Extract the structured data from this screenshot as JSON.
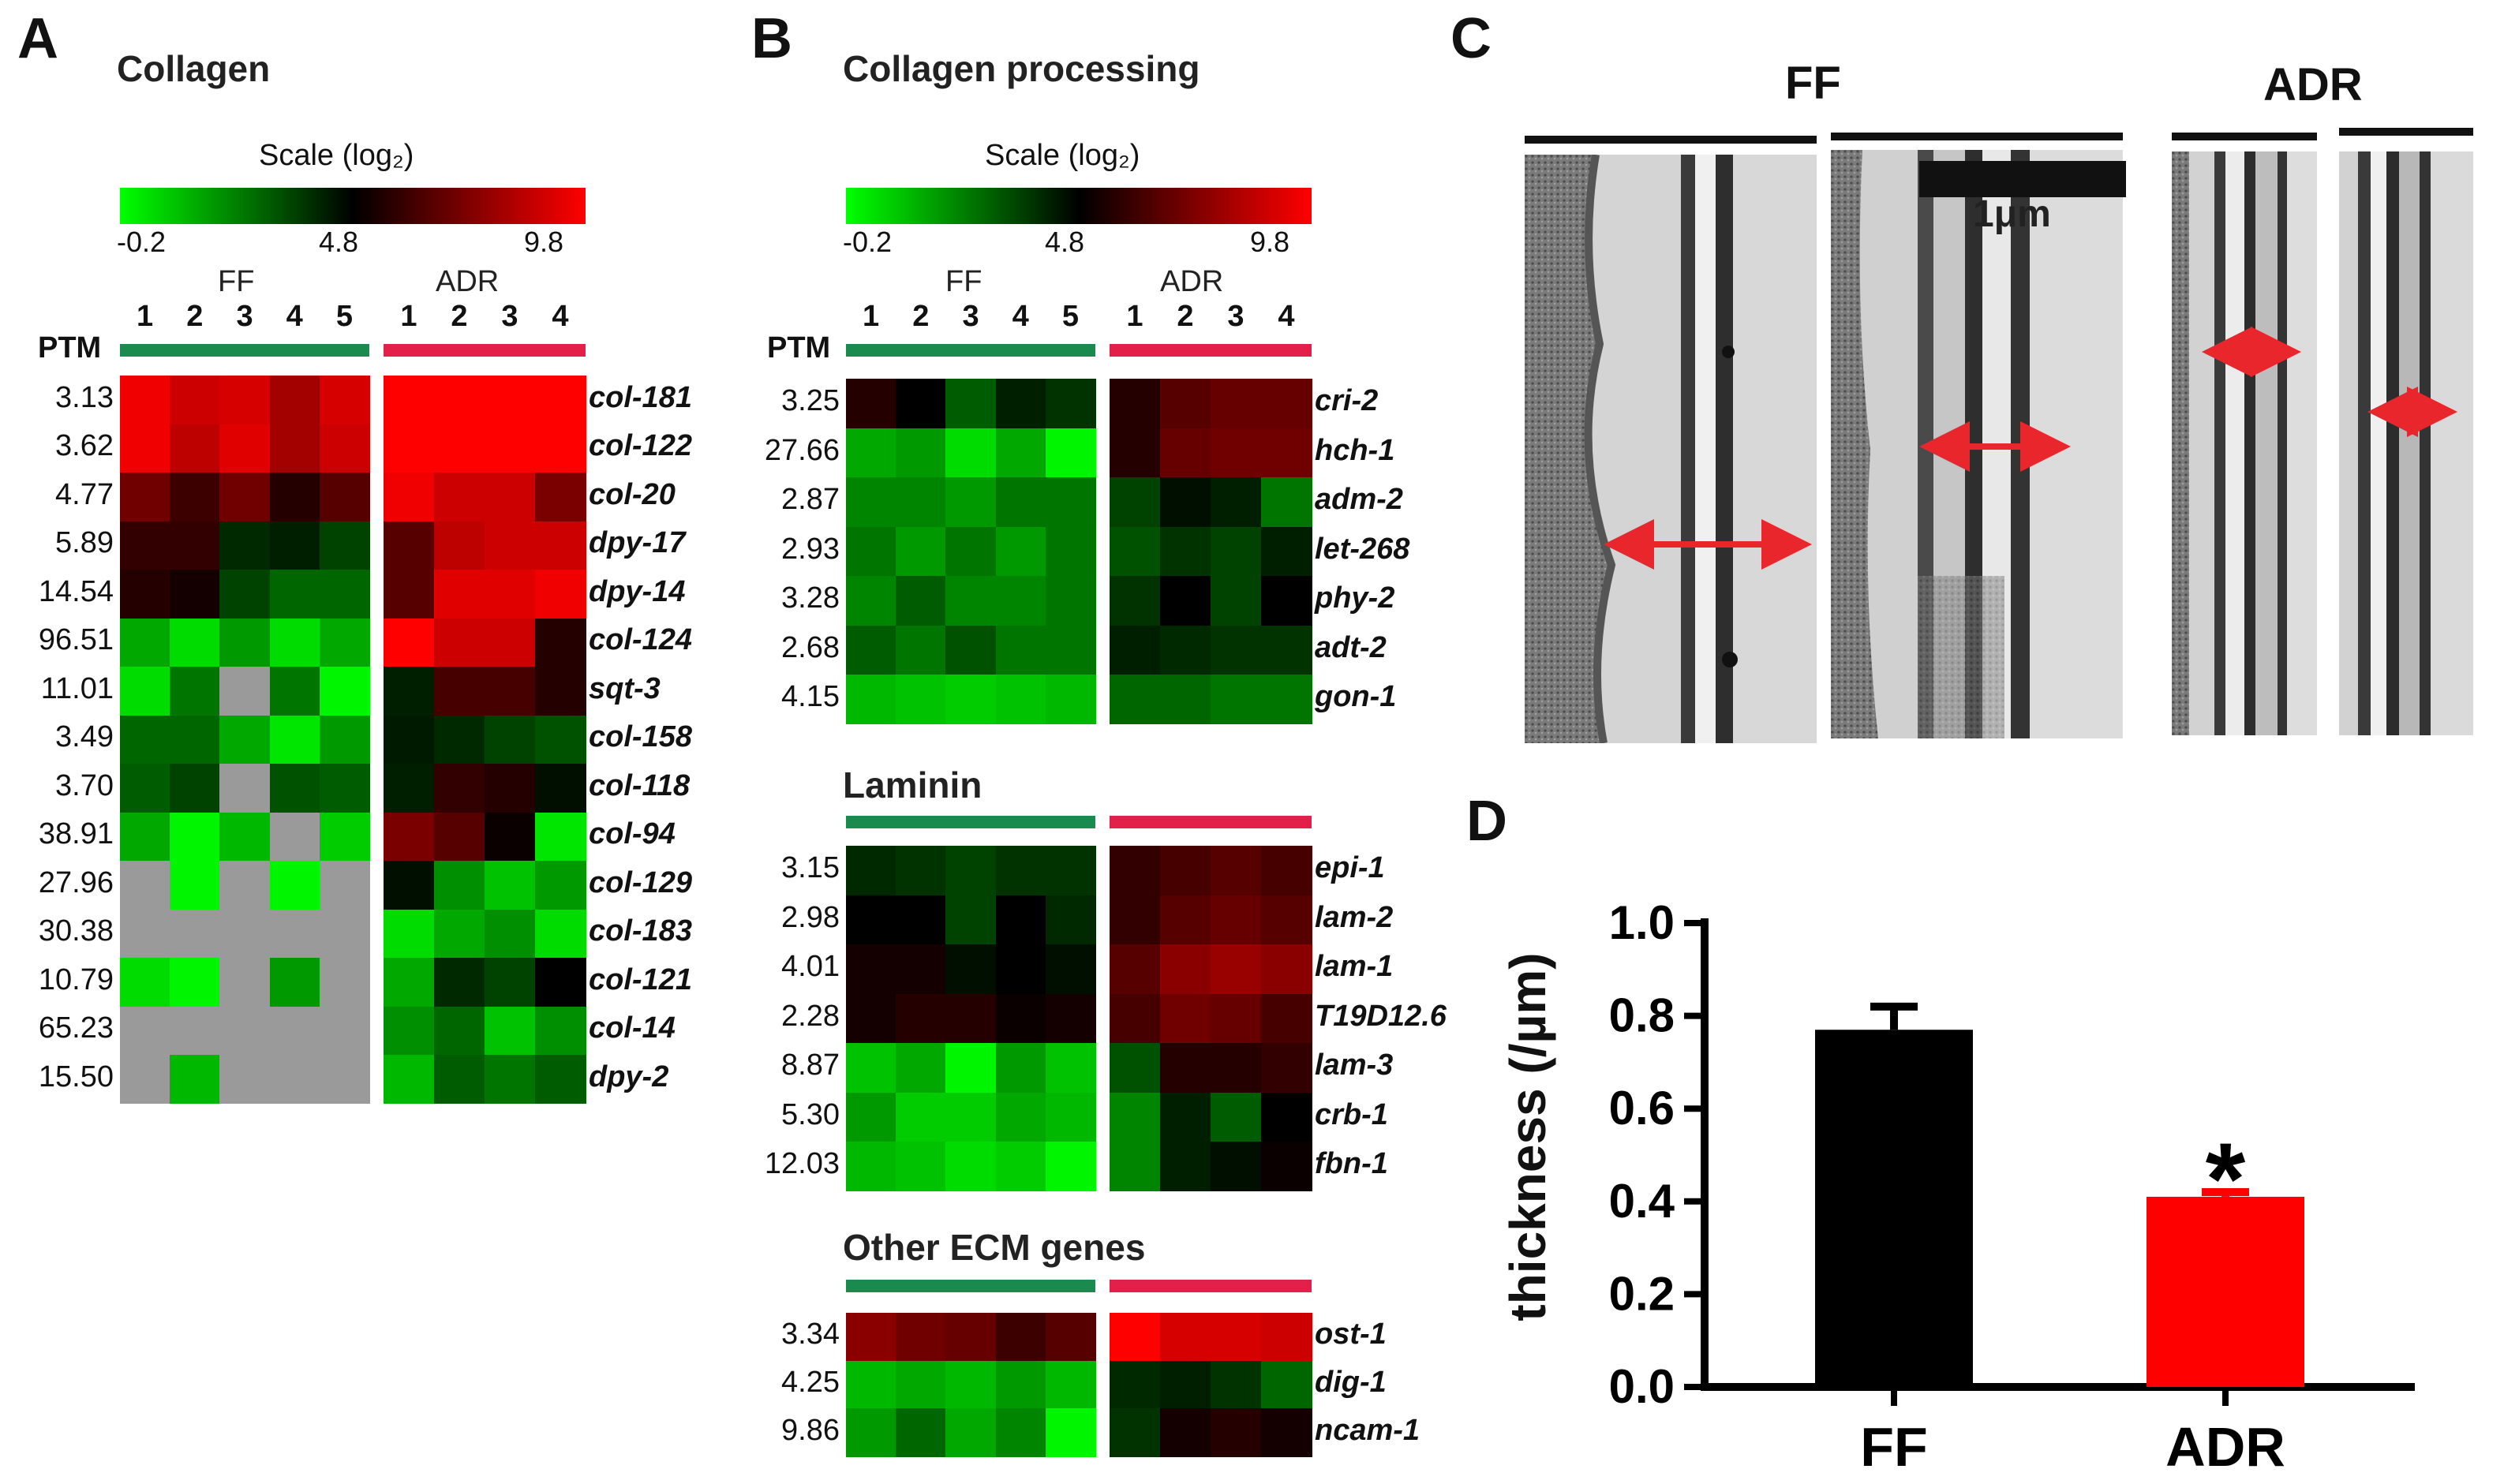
{
  "panels": {
    "a": {
      "letter": "A",
      "title": "Collagen"
    },
    "b": {
      "letter": "B",
      "title": "Collagen processing"
    },
    "c": {
      "letter": "C"
    },
    "d": {
      "letter": "D"
    }
  },
  "heatmap_common": {
    "scale_title": "Scale (log₂)",
    "scale_ticks": [
      "-0.2",
      "4.8",
      "9.8"
    ],
    "group_ff": "FF",
    "group_adr": "ADR",
    "ff_cols": [
      "1",
      "2",
      "3",
      "4",
      "5"
    ],
    "adr_cols": [
      "1",
      "2",
      "3",
      "4"
    ],
    "ptm_header": "PTM",
    "colors": {
      "low": "#00ff00",
      "mid": "#000000",
      "high": "#ff0000",
      "missing": "#9a9a9a"
    }
  },
  "collagen_rows": [
    {
      "ptm": "3.13",
      "gene": "col-181",
      "ff": [
        9.5,
        8.8,
        9.0,
        8.0,
        9.0
      ],
      "adr": [
        9.8,
        9.8,
        9.8,
        9.8
      ]
    },
    {
      "ptm": "3.62",
      "gene": "col-122",
      "ff": [
        9.5,
        8.5,
        9.2,
        8.0,
        8.8
      ],
      "adr": [
        9.8,
        9.8,
        9.8,
        9.8
      ]
    },
    {
      "ptm": "4.77",
      "gene": "col-20",
      "ff": [
        7.0,
        6.0,
        7.0,
        5.5,
        6.5
      ],
      "adr": [
        9.5,
        8.8,
        8.8,
        7.2
      ]
    },
    {
      "ptm": "5.89",
      "gene": "dpy-17",
      "ff": [
        5.8,
        5.8,
        4.0,
        4.2,
        3.5
      ],
      "adr": [
        6.5,
        8.5,
        8.8,
        8.8
      ]
    },
    {
      "ptm": "14.54",
      "gene": "dpy-14",
      "ff": [
        5.5,
        5.2,
        3.5,
        2.8,
        2.8
      ],
      "adr": [
        6.5,
        9.2,
        9.2,
        9.5
      ]
    },
    {
      "ptm": "96.51",
      "gene": "col-124",
      "ff": [
        1.5,
        0.5,
        1.8,
        0.5,
        1.5
      ],
      "adr": [
        9.8,
        8.8,
        8.8,
        5.5
      ]
    },
    {
      "ptm": "11.01",
      "gene": "sqt-3",
      "ff": [
        0.5,
        2.5,
        null,
        2.5,
        0.0
      ],
      "adr": [
        4.2,
        6.2,
        6.2,
        5.5
      ]
    },
    {
      "ptm": "3.49",
      "gene": "col-158",
      "ff": [
        2.8,
        2.8,
        1.5,
        0.3,
        1.8
      ],
      "adr": [
        4.3,
        4.0,
        3.5,
        3.2
      ]
    },
    {
      "ptm": "3.70",
      "gene": "col-118",
      "ff": [
        3.0,
        3.5,
        null,
        3.2,
        3.0
      ],
      "adr": [
        4.2,
        5.8,
        5.5,
        4.5
      ]
    },
    {
      "ptm": "38.91",
      "gene": "col-94",
      "ff": [
        1.5,
        0.0,
        1.2,
        null,
        0.8
      ],
      "adr": [
        7.2,
        6.5,
        5.0,
        0.3
      ]
    },
    {
      "ptm": "27.96",
      "gene": "col-129",
      "ff": [
        null,
        0.0,
        null,
        0.0,
        null
      ],
      "adr": [
        4.5,
        2.0,
        1.0,
        1.8
      ]
    },
    {
      "ptm": "30.38",
      "gene": "col-183",
      "ff": [
        null,
        null,
        null,
        null,
        null
      ],
      "adr": [
        0.5,
        1.5,
        2.0,
        0.5
      ]
    },
    {
      "ptm": "10.79",
      "gene": "col-121",
      "ff": [
        0.5,
        0.0,
        null,
        1.8,
        null
      ],
      "adr": [
        1.5,
        4.0,
        3.5,
        4.8
      ]
    },
    {
      "ptm": "65.23",
      "gene": "col-14",
      "ff": [
        null,
        null,
        null,
        null,
        null
      ],
      "adr": [
        2.0,
        2.8,
        1.0,
        2.0
      ]
    },
    {
      "ptm": "15.50",
      "gene": "dpy-2",
      "ff": [
        null,
        1.2,
        null,
        null,
        null
      ],
      "adr": [
        1.2,
        3.0,
        2.5,
        3.0
      ]
    }
  ],
  "processing_rows": [
    {
      "ptm": "3.25",
      "gene": "cri-2",
      "ff": [
        5.5,
        4.8,
        3.0,
        4.2,
        3.8
      ],
      "adr": [
        5.5,
        6.5,
        6.8,
        6.8
      ]
    },
    {
      "ptm": "27.66",
      "gene": "hch-1",
      "ff": [
        1.5,
        1.8,
        0.5,
        1.5,
        0.0
      ],
      "adr": [
        5.5,
        6.8,
        7.0,
        7.0
      ]
    },
    {
      "ptm": "2.87",
      "gene": "adm-2",
      "ff": [
        2.2,
        2.2,
        1.8,
        2.5,
        2.5
      ],
      "adr": [
        3.5,
        4.5,
        4.2,
        2.5
      ]
    },
    {
      "ptm": "2.93",
      "gene": "let-268",
      "ff": [
        2.5,
        1.8,
        2.5,
        1.8,
        2.5
      ],
      "adr": [
        3.2,
        3.8,
        3.5,
        4.2
      ]
    },
    {
      "ptm": "3.28",
      "gene": "phy-2",
      "ff": [
        2.2,
        3.0,
        2.2,
        2.2,
        2.5
      ],
      "adr": [
        3.8,
        4.8,
        3.5,
        4.8
      ]
    },
    {
      "ptm": "2.68",
      "gene": "adt-2",
      "ff": [
        3.0,
        2.5,
        3.2,
        2.5,
        2.5
      ],
      "adr": [
        4.2,
        4.0,
        3.8,
        3.8
      ]
    },
    {
      "ptm": "4.15",
      "gene": "gon-1",
      "ff": [
        1.2,
        1.0,
        0.8,
        1.0,
        1.2
      ],
      "adr": [
        2.8,
        2.8,
        2.5,
        2.5
      ]
    }
  ],
  "laminin_title": "Laminin",
  "laminin_rows": [
    {
      "ptm": "3.15",
      "gene": "epi-1",
      "ff": [
        4.0,
        3.8,
        3.5,
        3.8,
        3.8
      ],
      "adr": [
        5.8,
        6.2,
        6.5,
        6.2
      ]
    },
    {
      "ptm": "2.98",
      "gene": "lam-2",
      "ff": [
        4.8,
        4.8,
        3.5,
        4.8,
        4.0
      ],
      "adr": [
        5.8,
        6.5,
        6.8,
        6.5
      ]
    },
    {
      "ptm": "4.01",
      "gene": "lam-1",
      "ff": [
        5.2,
        5.2,
        4.5,
        4.8,
        4.5
      ],
      "adr": [
        6.5,
        7.5,
        7.8,
        7.5
      ]
    },
    {
      "ptm": "2.28",
      "gene": "T19D12.6",
      "ff": [
        5.2,
        5.5,
        5.5,
        5.0,
        5.2
      ],
      "adr": [
        6.2,
        7.0,
        6.8,
        6.2
      ]
    },
    {
      "ptm": "8.87",
      "gene": "lam-3",
      "ff": [
        1.0,
        1.5,
        0.0,
        1.8,
        1.0
      ],
      "adr": [
        3.2,
        5.5,
        5.5,
        5.8
      ]
    },
    {
      "ptm": "5.30",
      "gene": "crb-1",
      "ff": [
        1.8,
        0.8,
        0.8,
        1.5,
        1.2
      ],
      "adr": [
        2.2,
        4.2,
        3.0,
        4.8
      ]
    },
    {
      "ptm": "12.03",
      "gene": "fbn-1",
      "ff": [
        1.2,
        1.0,
        0.5,
        0.8,
        0.0
      ],
      "adr": [
        2.2,
        4.2,
        4.5,
        5.0
      ]
    }
  ],
  "other_title": "Other ECM genes",
  "other_rows": [
    {
      "ptm": "3.34",
      "gene": "ost-1",
      "ff": [
        7.5,
        7.0,
        6.8,
        6.0,
        6.5
      ],
      "adr": [
        9.8,
        9.0,
        9.0,
        8.8
      ]
    },
    {
      "ptm": "4.25",
      "gene": "dig-1",
      "ff": [
        1.2,
        1.5,
        1.2,
        1.8,
        1.2
      ],
      "adr": [
        4.0,
        4.2,
        3.8,
        2.8
      ]
    },
    {
      "ptm": "9.86",
      "gene": "ncam-1",
      "ff": [
        1.8,
        2.8,
        1.5,
        2.2,
        0.0
      ],
      "adr": [
        3.8,
        5.2,
        5.5,
        5.2
      ]
    }
  ],
  "tem": {
    "label_ff": "FF",
    "label_adr": "ADR",
    "scale_bar": "1μm",
    "arrow_color": "#e8262b"
  },
  "chart_data": {
    "type": "bar",
    "categories": [
      "FF",
      "ADR"
    ],
    "values": [
      0.77,
      0.41
    ],
    "errors": [
      0.05,
      0.01
    ],
    "colors": [
      "#000000",
      "#ff0000"
    ],
    "ylabel": "thickness (/µm)",
    "ylim": [
      0.0,
      1.0
    ],
    "yticks": [
      "0.0",
      "0.2",
      "0.4",
      "0.6",
      "0.8",
      "1.0"
    ],
    "annotations": [
      {
        "category": "ADR",
        "text": "*"
      }
    ],
    "grid": false
  }
}
